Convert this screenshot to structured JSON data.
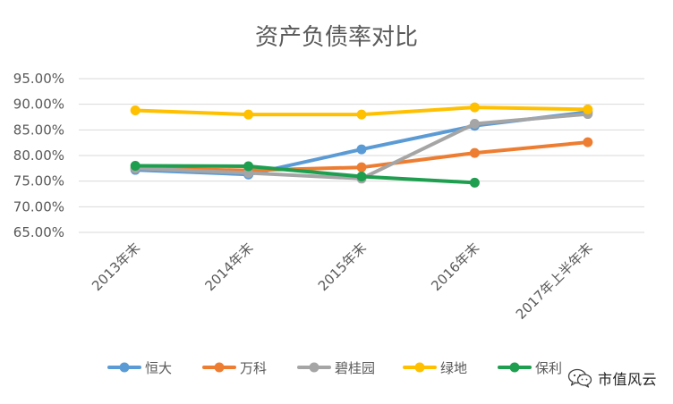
{
  "chart_data": {
    "type": "line",
    "title": "资产负债率对比",
    "categories": [
      "2013年末",
      "2014年末",
      "2015年末",
      "2016年末",
      "2017年上半年末"
    ],
    "ylim": [
      65,
      95
    ],
    "yticks": [
      "65.00%",
      "70.00%",
      "75.00%",
      "80.00%",
      "85.00%",
      "90.00%",
      "95.00%"
    ],
    "ytick_values": [
      65,
      70,
      75,
      80,
      85,
      90,
      95
    ],
    "grid": true,
    "legend_position": "bottom",
    "series": [
      {
        "name": "恒大",
        "color": "#5B9BD5",
        "values": [
          77.2,
          76.3,
          81.2,
          85.8,
          88.5
        ]
      },
      {
        "name": "万科",
        "color": "#ED7D31",
        "values": [
          77.5,
          77.1,
          77.7,
          80.5,
          82.6
        ]
      },
      {
        "name": "碧桂园",
        "color": "#A5A5A5",
        "values": [
          77.5,
          76.6,
          75.5,
          86.2,
          88.1
        ]
      },
      {
        "name": "绿地",
        "color": "#FFC000",
        "values": [
          88.8,
          88.0,
          88.0,
          89.4,
          89.0
        ]
      },
      {
        "name": "保利",
        "color": "#1E9E4F",
        "values": [
          78.0,
          77.9,
          75.9,
          74.7,
          null
        ]
      }
    ]
  },
  "watermark": {
    "icon": "wechat-logo-icon",
    "text": "市值风云"
  }
}
